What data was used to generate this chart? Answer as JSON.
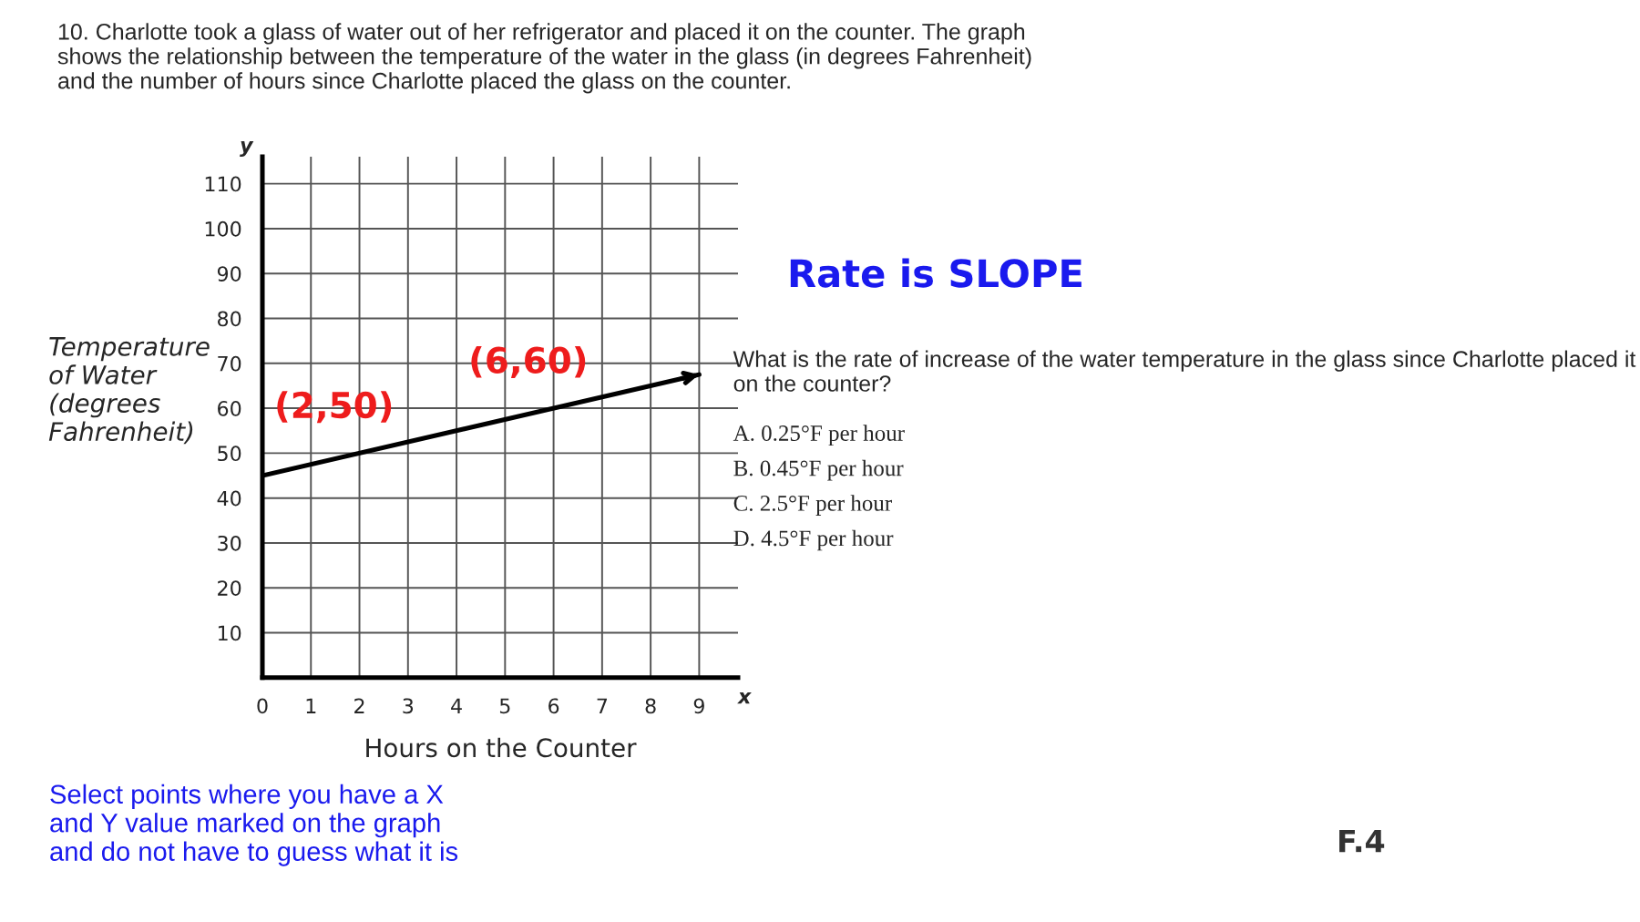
{
  "chart_data": {
    "type": "line",
    "title": "10. Charlotte took a glass of water out of her refrigerator and placed it on the counter. The graph\nshows the relationship between the temperature of the water in the glass (in degrees Fahrenheit)\nand the number of hours since Charlotte placed the glass on the counter.",
    "xlabel": "Hours on the Counter",
    "ylabel": "Temperature\nof Water\n(degrees\nFahrenheit)",
    "x": [
      0,
      9
    ],
    "series": [
      {
        "color": "#000000",
        "values": [
          45,
          67.5
        ]
      }
    ],
    "xlim": [
      0,
      9.8
    ],
    "ylim": [
      0,
      116
    ],
    "xticks": [
      0,
      1,
      2,
      3,
      4,
      5,
      6,
      7,
      8,
      9
    ],
    "yticks": [
      10,
      20,
      30,
      40,
      50,
      60,
      70,
      80,
      90,
      100,
      110
    ],
    "grid": true,
    "annotations": [
      {
        "text": "(2,50)",
        "x": 2,
        "y": 50
      },
      {
        "text": "(6,60)",
        "x": 6,
        "y": 60
      },
      "Rate is SLOPE",
      "What is the rate of increase of the water temperature in the glass since Charlotte placed it\non the counter?",
      "A. 0.25°F per hour",
      "B. 0.45°F per hour",
      "C. 2.5°F per hour",
      "D. 4.5°F per hour",
      "Select points where you have a X\nand Y value marked on the graph\nand do not have to guess what it is",
      "F.4",
      "x",
      "y"
    ]
  }
}
